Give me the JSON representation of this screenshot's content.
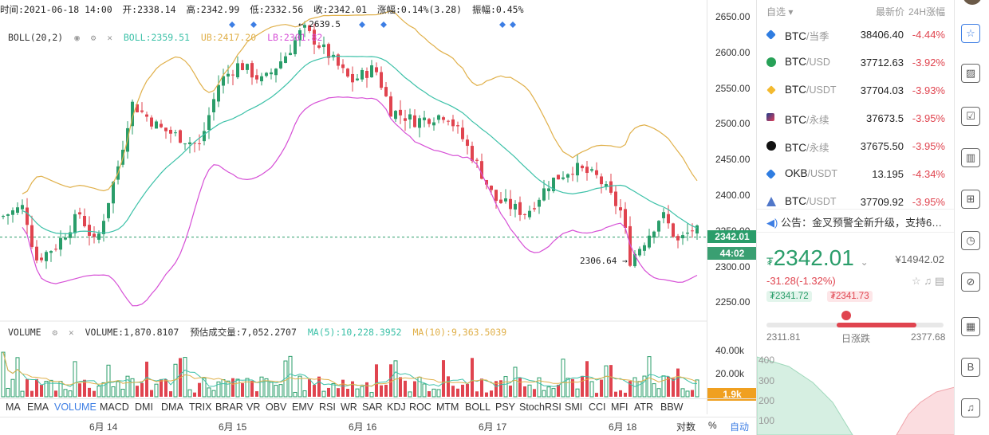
{
  "ohlc": {
    "time": "时间:2021-06-18 14:00",
    "open": "开:2338.14",
    "high": "高:2342.99",
    "low": "低:2332.56",
    "close": "收:2342.01",
    "change": "涨幅:0.14%(3.28)",
    "amplitude": "振幅:0.45%"
  },
  "boll_legend": {
    "name": "BOLL(20,2)",
    "boll": "BOLL:2359.51",
    "ub": "UB:2417.20",
    "lb": "LB:2301.82"
  },
  "vol_legend": {
    "name": "VOLUME",
    "volume": "VOLUME:1,870.8107",
    "est": "预估成交量:7,052.2707",
    "ma5": "MA(5):10,228.3952",
    "ma10": "MA(10):9,363.5039"
  },
  "annotations": {
    "high": "← 2639.5",
    "low": "2306.64 →"
  },
  "y_ticks": [
    "2650.00",
    "2600.00",
    "2550.00",
    "2500.00",
    "2450.00",
    "2400.00",
    "2350.00",
    "2300.00",
    "2250.00"
  ],
  "price_tag": "2342.01",
  "countdown_tag": "44:02",
  "vol_ticks": [
    "40.00k",
    "20.00k"
  ],
  "vol_tag": "1.9k",
  "indicators": [
    "MA",
    "EMA",
    "VOLUME",
    "MACD",
    "DMI",
    "DMA",
    "TRIX",
    "BRAR",
    "VR",
    "OBV",
    "EMV",
    "RSI",
    "WR",
    "SAR",
    "KDJ",
    "ROC",
    "MTM",
    "BOLL",
    "PSY",
    "StochRSI",
    "SMI",
    "CCI",
    "MFI",
    "ATR",
    "BBW"
  ],
  "active_indicator": "VOLUME",
  "dates": [
    "6月 14",
    "6月 15",
    "6月 16",
    "6月 17",
    "6月 18"
  ],
  "axis_opts": {
    "log": "对数",
    "pct": "%",
    "auto": "自动"
  },
  "colors": {
    "up": "#2a9d6a",
    "down": "#e0444f",
    "mid": "#3cc1a8",
    "ub": "#e0b04a",
    "lb": "#d64fd6",
    "accent": "#3d7ee4"
  },
  "watchlist": {
    "title": "自选 ▾",
    "col_last": "最新价",
    "col_chg": "24H涨幅",
    "rows": [
      {
        "base": "BTC",
        "quote": "/当季",
        "last": "38406.40",
        "chg": "-4.44%",
        "icon": "blue-diamond-icon"
      },
      {
        "base": "BTC",
        "quote": "/USD",
        "last": "37712.63",
        "chg": "-3.92%",
        "icon": "bitcoin-green-icon"
      },
      {
        "base": "BTC",
        "quote": "/USDT",
        "last": "37704.03",
        "chg": "-3.93%",
        "icon": "binance-icon"
      },
      {
        "base": "BTC",
        "quote": "/永续",
        "last": "37673.5",
        "chg": "-3.95%",
        "icon": "huobi-icon"
      },
      {
        "base": "BTC",
        "quote": "/永续",
        "last": "37675.50",
        "chg": "-3.95%",
        "icon": "okex-icon"
      },
      {
        "base": "OKB",
        "quote": "/USDT",
        "last": "13.195",
        "chg": "-4.34%",
        "icon": "blue-diamond-icon"
      },
      {
        "base": "BTC",
        "quote": "/USDT",
        "last": "37709.92",
        "chg": "-3.95%",
        "icon": "triangle-icon"
      }
    ]
  },
  "notice": "公告：金叉预警全新升级，支持6…",
  "ticker": {
    "currency": "₮",
    "price": "2342.01",
    "cny": "¥14942.02",
    "change": "-31.28(-1.32%)",
    "tag_up": "₮2341.72",
    "tag_down": "₮2341.73",
    "range_low": "2311.81",
    "range_label": "日涨跌",
    "range_high": "2377.68",
    "range_position": 0.45
  },
  "depth_ticks": [
    "400",
    "300",
    "200",
    "100"
  ],
  "toolbar_icons": [
    "watchlist-star-icon",
    "chart-icon",
    "checklist-icon",
    "bar-chart-icon",
    "add-window-icon",
    "alarm-clock-icon",
    "compass-icon",
    "bar-chart-lines-icon",
    "document-b-icon",
    "headset-icon",
    "help-icon"
  ]
}
